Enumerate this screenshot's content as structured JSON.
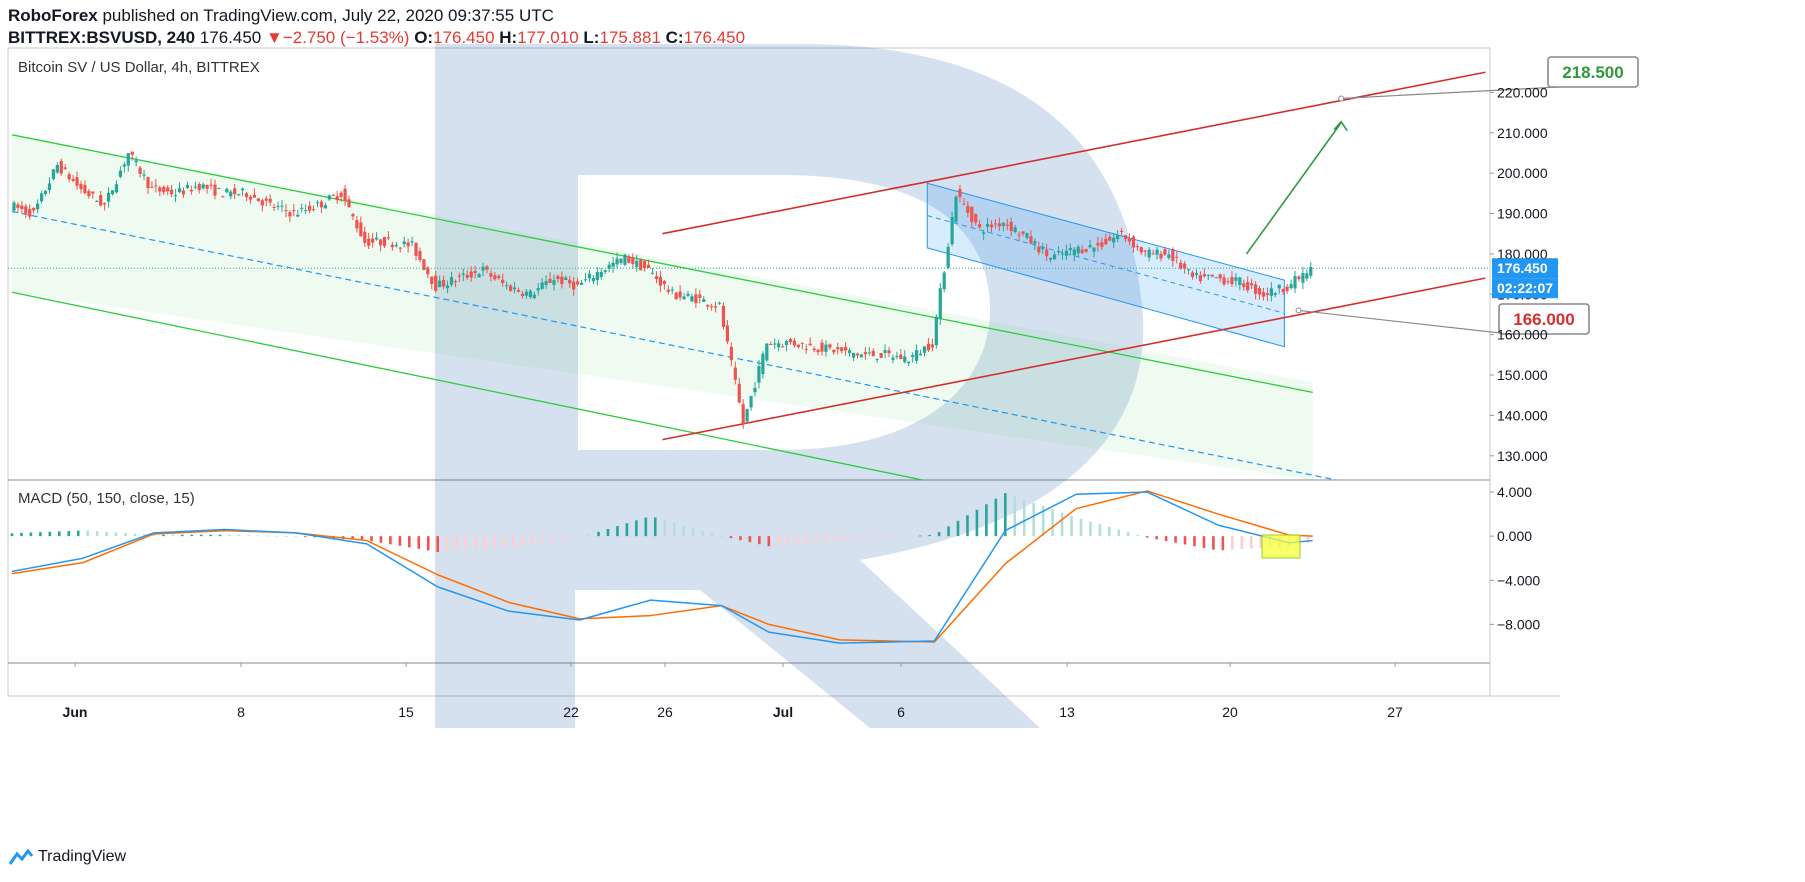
{
  "header": {
    "publisher": "RoboForex",
    "published_text": "published on TradingView.com, July 22, 2020 09:37:55 UTC",
    "symbol": "BITTREX:BSVUSD, 240",
    "last": "176.450",
    "change_arrow": "▼",
    "change": "−2.750 (−1.53%)",
    "o_label": "O:",
    "o_value": "176.450",
    "h_label": "H:",
    "h_value": "177.010",
    "l_label": "L:",
    "l_value": "175.881",
    "c_label": "C:",
    "c_value": "176.450"
  },
  "footer": {
    "brand": "TradingView",
    "brand_icon": "tradingview-logo-icon"
  },
  "colors": {
    "up": "#26a69a",
    "down": "#ef5350",
    "green_channel": "#2ecc40",
    "red_channel": "#d32f2f",
    "blue_channel": "#2196f3",
    "macd_line": "#2196f3",
    "signal_line": "#ff6d00",
    "target_green": "#2e9b3a",
    "price_tag": "#2196f3"
  },
  "chart_data": [
    {
      "type": "candlestick",
      "title": "Bitcoin SV / US Dollar, 4h, BITTREX",
      "y_ticks": [
        "220.000",
        "210.000",
        "200.000",
        "190.000",
        "180.000",
        "170.000",
        "160.000",
        "150.000",
        "140.000",
        "130.000"
      ],
      "ylim": [
        124,
        231
      ],
      "x_ticks": [
        "Jun",
        "8",
        "15",
        "22",
        "26",
        "Jul",
        "6",
        "13",
        "20",
        "27"
      ],
      "price_path": [
        {
          "d": "May 28",
          "v": 192
        },
        {
          "d": "May 29",
          "v": 190
        },
        {
          "d": "May 30",
          "v": 202
        },
        {
          "d": "May 31",
          "v": 196
        },
        {
          "d": "Jun 1",
          "v": 192
        },
        {
          "d": "Jun 2",
          "v": 205
        },
        {
          "d": "Jun 3",
          "v": 196
        },
        {
          "d": "Jun 4",
          "v": 195
        },
        {
          "d": "Jun 5",
          "v": 197
        },
        {
          "d": "Jun 6",
          "v": 195
        },
        {
          "d": "Jun 7",
          "v": 195
        },
        {
          "d": "Jun 8",
          "v": 192
        },
        {
          "d": "Jun 9",
          "v": 190
        },
        {
          "d": "Jun 10",
          "v": 192
        },
        {
          "d": "Jun 11",
          "v": 195
        },
        {
          "d": "Jun 12",
          "v": 183
        },
        {
          "d": "Jun 13",
          "v": 183
        },
        {
          "d": "Jun 14",
          "v": 182
        },
        {
          "d": "Jun 15",
          "v": 172
        },
        {
          "d": "Jun 16",
          "v": 174
        },
        {
          "d": "Jun 17",
          "v": 176
        },
        {
          "d": "Jun 18",
          "v": 172
        },
        {
          "d": "Jun 19",
          "v": 170
        },
        {
          "d": "Jun 20",
          "v": 174
        },
        {
          "d": "Jun 21",
          "v": 172
        },
        {
          "d": "Jun 22",
          "v": 176
        },
        {
          "d": "Jun 23",
          "v": 179
        },
        {
          "d": "Jun 24",
          "v": 176
        },
        {
          "d": "Jun 25",
          "v": 170
        },
        {
          "d": "Jun 26",
          "v": 169
        },
        {
          "d": "Jun 27",
          "v": 167
        },
        {
          "d": "Jun 28",
          "v": 138
        },
        {
          "d": "Jun 29",
          "v": 158
        },
        {
          "d": "Jun 30",
          "v": 158
        },
        {
          "d": "Jul 1",
          "v": 157
        },
        {
          "d": "Jul 2",
          "v": 156
        },
        {
          "d": "Jul 3",
          "v": 155
        },
        {
          "d": "Jul 4",
          "v": 155
        },
        {
          "d": "Jul 5",
          "v": 154
        },
        {
          "d": "Jul 6",
          "v": 158
        },
        {
          "d": "Jul 7",
          "v": 195
        },
        {
          "d": "Jul 8",
          "v": 186
        },
        {
          "d": "Jul 9",
          "v": 188
        },
        {
          "d": "Jul 10",
          "v": 184
        },
        {
          "d": "Jul 11",
          "v": 179
        },
        {
          "d": "Jul 12",
          "v": 181
        },
        {
          "d": "Jul 13",
          "v": 182
        },
        {
          "d": "Jul 14",
          "v": 185
        },
        {
          "d": "Jul 15",
          "v": 180
        },
        {
          "d": "Jul 16",
          "v": 180
        },
        {
          "d": "Jul 17",
          "v": 174
        },
        {
          "d": "Jul 18",
          "v": 174
        },
        {
          "d": "Jul 19",
          "v": 173
        },
        {
          "d": "Jul 20",
          "v": 170
        },
        {
          "d": "Jul 21",
          "v": 172
        },
        {
          "d": "Jul 22",
          "v": 176
        }
      ],
      "last_price": "176.450",
      "countdown": "02:22:07",
      "targets": [
        {
          "label": "218.500",
          "value": 218.5,
          "color": "green"
        },
        {
          "label": "166.000",
          "value": 166.0,
          "color": "red"
        }
      ]
    },
    {
      "type": "line",
      "title": "MACD (50, 150, close, 15)",
      "y_ticks": [
        "4.000",
        "0.000",
        "−4.000",
        "−8.000"
      ],
      "ylim": [
        -11.5,
        5.0
      ],
      "series": [
        {
          "name": "MACD",
          "values": [
            {
              "d": "May 28",
              "v": -3.2
            },
            {
              "d": "May 31",
              "v": -2.0
            },
            {
              "d": "Jun 3",
              "v": 0.3
            },
            {
              "d": "Jun 6",
              "v": 0.6
            },
            {
              "d": "Jun 9",
              "v": 0.3
            },
            {
              "d": "Jun 12",
              "v": -0.7
            },
            {
              "d": "Jun 15",
              "v": -4.6
            },
            {
              "d": "Jun 18",
              "v": -6.8
            },
            {
              "d": "Jun 21",
              "v": -7.6
            },
            {
              "d": "Jun 24",
              "v": -5.8
            },
            {
              "d": "Jun 27",
              "v": -6.3
            },
            {
              "d": "Jun 29",
              "v": -8.7
            },
            {
              "d": "Jul 2",
              "v": -9.7
            },
            {
              "d": "Jul 6",
              "v": -9.5
            },
            {
              "d": "Jul 9",
              "v": 0.5
            },
            {
              "d": "Jul 12",
              "v": 3.8
            },
            {
              "d": "Jul 15",
              "v": 4.0
            },
            {
              "d": "Jul 18",
              "v": 1.0
            },
            {
              "d": "Jul 21",
              "v": -0.6
            },
            {
              "d": "Jul 22",
              "v": -0.4
            }
          ]
        },
        {
          "name": "Signal",
          "values": [
            {
              "d": "May 28",
              "v": -3.4
            },
            {
              "d": "May 31",
              "v": -2.4
            },
            {
              "d": "Jun 3",
              "v": 0.2
            },
            {
              "d": "Jun 6",
              "v": 0.5
            },
            {
              "d": "Jun 9",
              "v": 0.3
            },
            {
              "d": "Jun 12",
              "v": -0.4
            },
            {
              "d": "Jun 15",
              "v": -3.5
            },
            {
              "d": "Jun 18",
              "v": -6.0
            },
            {
              "d": "Jun 21",
              "v": -7.5
            },
            {
              "d": "Jun 24",
              "v": -7.2
            },
            {
              "d": "Jun 27",
              "v": -6.3
            },
            {
              "d": "Jun 29",
              "v": -8.0
            },
            {
              "d": "Jul 2",
              "v": -9.4
            },
            {
              "d": "Jul 6",
              "v": -9.6
            },
            {
              "d": "Jul 9",
              "v": -2.5
            },
            {
              "d": "Jul 12",
              "v": 2.5
            },
            {
              "d": "Jul 15",
              "v": 4.1
            },
            {
              "d": "Jul 18",
              "v": 2.0
            },
            {
              "d": "Jul 21",
              "v": 0.1
            },
            {
              "d": "Jul 22",
              "v": 0.0
            }
          ]
        }
      ]
    }
  ]
}
